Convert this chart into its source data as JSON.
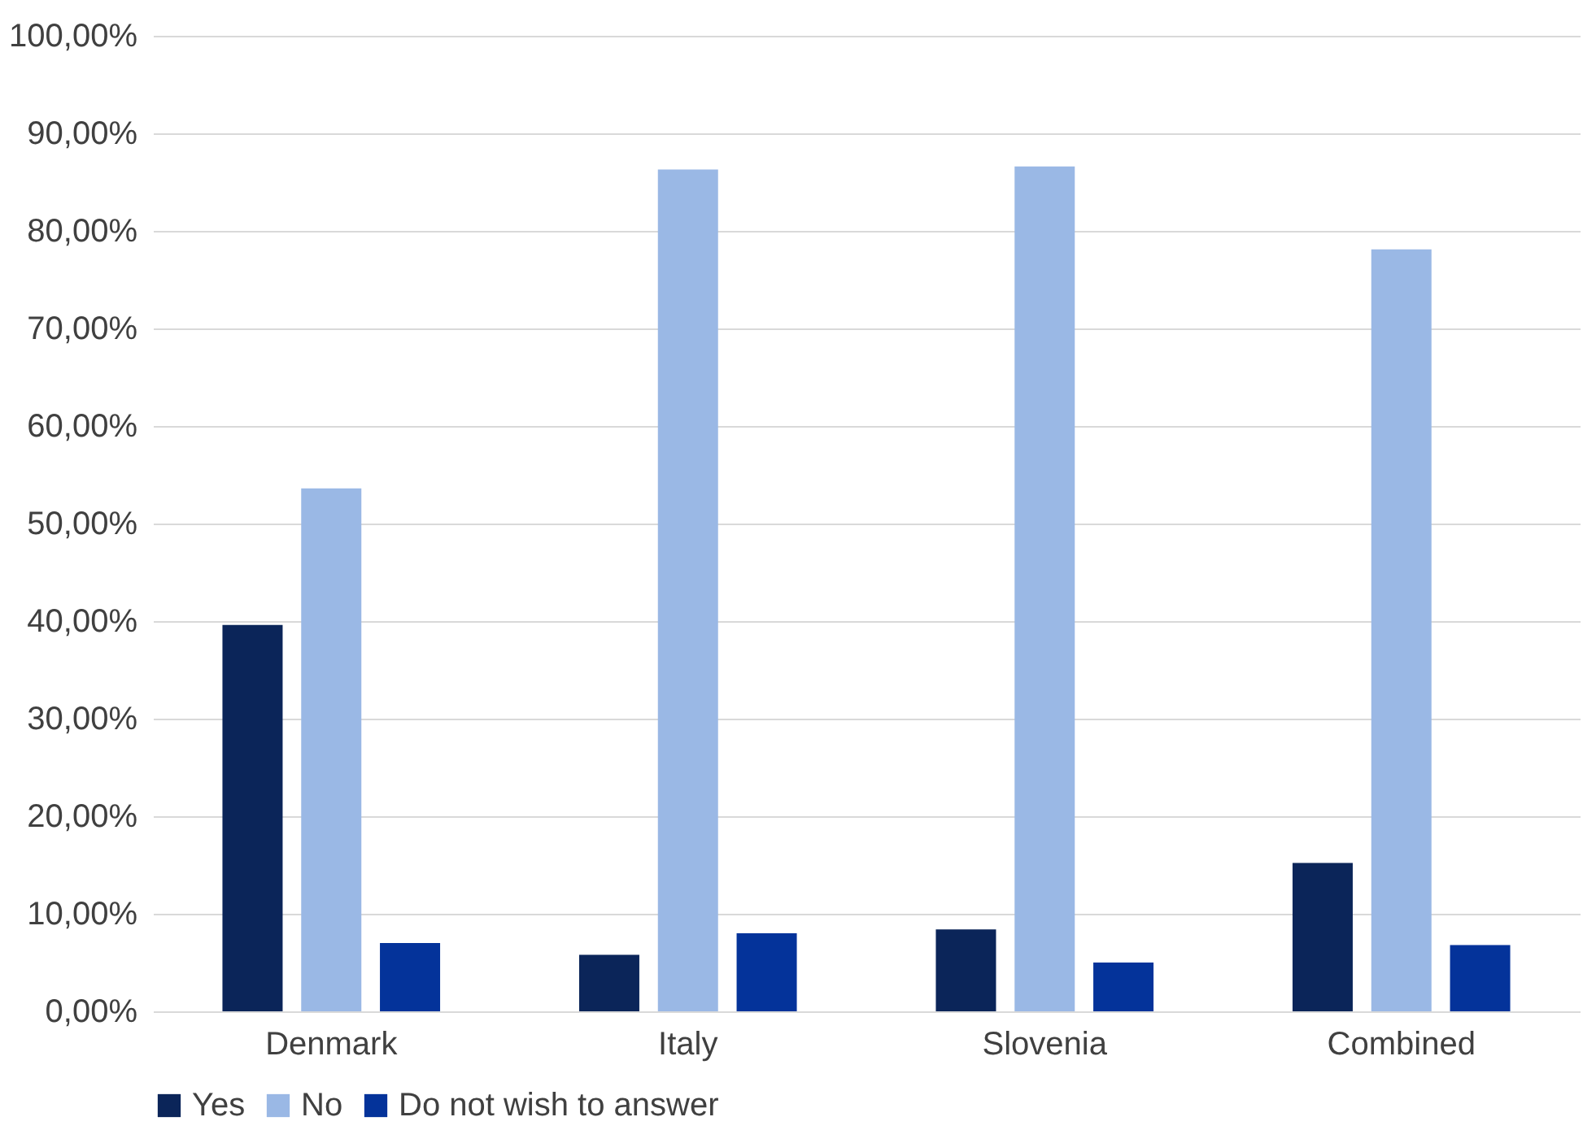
{
  "chart_data": {
    "type": "bar",
    "categories": [
      "Denmark",
      "Italy",
      "Slovenia",
      "Combined"
    ],
    "series": [
      {
        "name": "Yes",
        "color": "#0b2559",
        "values": [
          39.6,
          5.8,
          8.4,
          15.2
        ]
      },
      {
        "name": "No",
        "color": "#9ab8e5",
        "values": [
          53.6,
          86.3,
          86.6,
          78.1
        ]
      },
      {
        "name": "Do not wish to answer",
        "color": "#04339a",
        "values": [
          7.0,
          8.0,
          5.0,
          6.8
        ]
      }
    ],
    "ylim": [
      0,
      100
    ],
    "yticks": [
      {
        "value": 0,
        "label": "0,00%"
      },
      {
        "value": 10,
        "label": "10,00%"
      },
      {
        "value": 20,
        "label": "20,00%"
      },
      {
        "value": 30,
        "label": "30,00%"
      },
      {
        "value": 40,
        "label": "40,00%"
      },
      {
        "value": 50,
        "label": "50,00%"
      },
      {
        "value": 60,
        "label": "60,00%"
      },
      {
        "value": 70,
        "label": "70,00%"
      },
      {
        "value": 80,
        "label": "80,00%"
      },
      {
        "value": 90,
        "label": "90,00%"
      },
      {
        "value": 100,
        "label": "100,00%"
      }
    ],
    "grid": "y",
    "legend": "bottom"
  }
}
